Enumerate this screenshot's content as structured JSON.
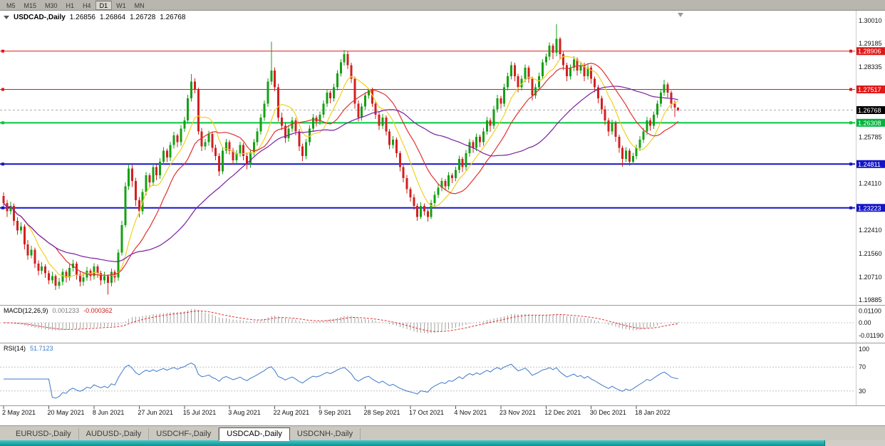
{
  "toolbar": {
    "timeframes": [
      "M5",
      "M15",
      "M30",
      "H1",
      "H4",
      "D1",
      "W1",
      "MN"
    ],
    "active": "D1"
  },
  "chart_header": {
    "symbol": "USDCAD-,Daily",
    "open": "1.26856",
    "high": "1.26864",
    "low": "1.26728",
    "close": "1.26768"
  },
  "price_axis": {
    "ticks": [
      "1.30010",
      "1.29185",
      "1.28335",
      "1.25785",
      "1.24110",
      "1.22410",
      "1.21560",
      "1.20710",
      "1.19885"
    ],
    "badges": [
      {
        "value": "1.28906",
        "color": "#e01818",
        "name": "resistance-upper"
      },
      {
        "value": "1.27517",
        "color": "#e01818",
        "name": "resistance-lower"
      },
      {
        "value": "1.26768",
        "color": "#000000",
        "name": "current-price"
      },
      {
        "value": "1.26308",
        "color": "#00b43c",
        "name": "support-green"
      },
      {
        "value": "1.24811",
        "color": "#1414c8",
        "name": "support-blue-upper"
      },
      {
        "value": "1.23223",
        "color": "#1414c8",
        "name": "support-blue-lower"
      }
    ]
  },
  "hlines": [
    {
      "price": 1.28906,
      "color": "#e01818",
      "width": 1
    },
    {
      "price": 1.27517,
      "color": "#e01818",
      "width": 1
    },
    {
      "price": 1.26308,
      "color": "#00c83c",
      "width": 2
    },
    {
      "price": 1.24811,
      "color": "#1414c8",
      "width": 2
    },
    {
      "price": 1.23223,
      "color": "#1414c8",
      "width": 2
    }
  ],
  "current_price_line": {
    "price": 1.26768,
    "color": "#aaaaaa"
  },
  "indicators": {
    "macd": {
      "label": "MACD(12,26,9)",
      "value": "0.001233",
      "signal_value": "-0.000362",
      "axis": [
        "0.01100",
        "0.00",
        "-0.01190"
      ],
      "params": [
        12,
        26,
        9
      ]
    },
    "rsi": {
      "label": "RSI(14)",
      "value": "51.7123",
      "axis": [
        "100",
        "70",
        "30"
      ],
      "levels": [
        70,
        30
      ],
      "period": 14
    }
  },
  "tabs": {
    "items": [
      "EURUSD-,Daily",
      "AUDUSD-,Daily",
      "USDCHF-,Daily",
      "USDCAD-,Daily",
      "USDCNH-,Daily"
    ],
    "active_index": 3
  },
  "colors": {
    "bull": "#15a015",
    "bear": "#d22020",
    "ma_fast": "#f0d020",
    "ma_mid": "#e03131",
    "ma_slow": "#7a1fa0",
    "macd_hist": "#a2a2a2",
    "macd_signal": "#e03131",
    "rsi": "#3c78c8"
  },
  "chart_data": {
    "type": "candlestick",
    "symbol": "USDCAD",
    "timeframe": "Daily",
    "ylim": [
      1.19885,
      1.3001
    ],
    "x_label_step": 13,
    "x_labels": [
      "2 May 2021",
      "20 May 2021",
      "8 Jun 2021",
      "27 Jun 2021",
      "15 Jul 2021",
      "3 Aug 2021",
      "22 Aug 2021",
      "9 Sep 2021",
      "28 Sep 2021",
      "17 Oct 2021",
      "4 Nov 2021",
      "23 Nov 2021",
      "12 Dec 2021",
      "30 Dec 2021",
      "18 Jan 2022"
    ],
    "ma_periods": {
      "fast": 8,
      "mid": 16,
      "slow": 40
    },
    "candles": [
      [
        1.2365,
        1.2378,
        1.2328,
        1.234
      ],
      [
        1.234,
        1.2352,
        1.229,
        1.231
      ],
      [
        1.231,
        1.2345,
        1.2298,
        1.233
      ],
      [
        1.233,
        1.2338,
        1.2258,
        1.2275
      ],
      [
        1.2275,
        1.2288,
        1.2225,
        1.224
      ],
      [
        1.224,
        1.227,
        1.2228,
        1.2255
      ],
      [
        1.2255,
        1.2262,
        1.2172,
        1.219
      ],
      [
        1.219,
        1.2205,
        1.2135,
        1.215
      ],
      [
        1.215,
        1.2185,
        1.214,
        1.217
      ],
      [
        1.217,
        1.2178,
        1.2105,
        1.212
      ],
      [
        1.212,
        1.2132,
        1.2078,
        1.2095
      ],
      [
        1.2095,
        1.2125,
        1.2082,
        1.211
      ],
      [
        1.211,
        1.2118,
        1.2068,
        1.2085
      ],
      [
        1.2085,
        1.2096,
        1.2045,
        1.206
      ],
      [
        1.206,
        1.209,
        1.2048,
        1.2075
      ],
      [
        1.2075,
        1.2082,
        1.2025,
        1.204
      ],
      [
        1.204,
        1.2068,
        1.2028,
        1.2055
      ],
      [
        1.2055,
        1.2102,
        1.2042,
        1.209
      ],
      [
        1.209,
        1.2098,
        1.2052,
        1.207
      ],
      [
        1.207,
        1.2118,
        1.2058,
        1.2105
      ],
      [
        1.2105,
        1.2135,
        1.2092,
        1.212
      ],
      [
        1.212,
        1.2128,
        1.2062,
        1.208
      ],
      [
        1.208,
        1.209,
        1.2038,
        1.2055
      ],
      [
        1.2055,
        1.2085,
        1.204,
        1.207
      ],
      [
        1.207,
        1.2108,
        1.2058,
        1.2095
      ],
      [
        1.2095,
        1.2102,
        1.2058,
        1.2075
      ],
      [
        1.2075,
        1.2122,
        1.2062,
        1.211
      ],
      [
        1.211,
        1.2118,
        1.2068,
        1.2085
      ],
      [
        1.2085,
        1.2094,
        1.2042,
        1.206
      ],
      [
        1.206,
        1.209,
        1.2046,
        1.2075
      ],
      [
        1.2075,
        1.2082,
        1.2008,
        1.205
      ],
      [
        1.205,
        1.2102,
        1.2038,
        1.209
      ],
      [
        1.209,
        1.2098,
        1.2052,
        1.207
      ],
      [
        1.207,
        1.2172,
        1.2058,
        1.216
      ],
      [
        1.216,
        1.2275,
        1.215,
        1.226
      ],
      [
        1.226,
        1.2415,
        1.2252,
        1.24
      ],
      [
        1.24,
        1.248,
        1.2388,
        1.2465
      ],
      [
        1.2465,
        1.2478,
        1.2398,
        1.242
      ],
      [
        1.242,
        1.2432,
        1.233,
        1.235
      ],
      [
        1.235,
        1.2362,
        1.2288,
        1.231
      ],
      [
        1.231,
        1.2392,
        1.2298,
        1.238
      ],
      [
        1.238,
        1.2452,
        1.2368,
        1.244
      ],
      [
        1.244,
        1.2448,
        1.2395,
        1.2415
      ],
      [
        1.2415,
        1.2482,
        1.2402,
        1.247
      ],
      [
        1.247,
        1.2478,
        1.2422,
        1.244
      ],
      [
        1.244,
        1.2502,
        1.2428,
        1.249
      ],
      [
        1.249,
        1.2542,
        1.2478,
        1.253
      ],
      [
        1.253,
        1.2538,
        1.2488,
        1.2505
      ],
      [
        1.2505,
        1.2562,
        1.2492,
        1.255
      ],
      [
        1.255,
        1.2598,
        1.2538,
        1.2585
      ],
      [
        1.2585,
        1.2592,
        1.2542,
        1.256
      ],
      [
        1.256,
        1.2622,
        1.2548,
        1.261
      ],
      [
        1.261,
        1.2652,
        1.2598,
        1.264
      ],
      [
        1.264,
        1.2732,
        1.2628,
        1.272
      ],
      [
        1.272,
        1.2807,
        1.2708,
        1.278
      ],
      [
        1.278,
        1.2792,
        1.2738,
        1.275
      ],
      [
        1.275,
        1.2758,
        1.2588,
        1.26
      ],
      [
        1.26,
        1.2612,
        1.2528,
        1.2545
      ],
      [
        1.2545,
        1.2572,
        1.2532,
        1.256
      ],
      [
        1.256,
        1.2602,
        1.2548,
        1.259
      ],
      [
        1.259,
        1.2598,
        1.2525,
        1.254
      ],
      [
        1.254,
        1.2552,
        1.2495,
        1.251
      ],
      [
        1.251,
        1.252,
        1.2438,
        1.2455
      ],
      [
        1.2455,
        1.2542,
        1.2445,
        1.253
      ],
      [
        1.253,
        1.2572,
        1.2518,
        1.256
      ],
      [
        1.256,
        1.2568,
        1.2515,
        1.253
      ],
      [
        1.253,
        1.254,
        1.2478,
        1.2495
      ],
      [
        1.2495,
        1.2532,
        1.2482,
        1.252
      ],
      [
        1.252,
        1.2562,
        1.2508,
        1.255
      ],
      [
        1.255,
        1.2558,
        1.2495,
        1.251
      ],
      [
        1.251,
        1.252,
        1.2462,
        1.248
      ],
      [
        1.248,
        1.2535,
        1.2468,
        1.2525
      ],
      [
        1.2525,
        1.2572,
        1.2512,
        1.256
      ],
      [
        1.256,
        1.2612,
        1.2548,
        1.26
      ],
      [
        1.26,
        1.2662,
        1.2588,
        1.265
      ],
      [
        1.265,
        1.2712,
        1.2638,
        1.27
      ],
      [
        1.27,
        1.2792,
        1.2688,
        1.278
      ],
      [
        1.278,
        1.2925,
        1.2768,
        1.282
      ],
      [
        1.282,
        1.2832,
        1.2745,
        1.276
      ],
      [
        1.276,
        1.2772,
        1.2635,
        1.265
      ],
      [
        1.265,
        1.2668,
        1.2605,
        1.262
      ],
      [
        1.262,
        1.2632,
        1.2558,
        1.2575
      ],
      [
        1.2575,
        1.2622,
        1.2562,
        1.261
      ],
      [
        1.261,
        1.2652,
        1.2598,
        1.264
      ],
      [
        1.264,
        1.2648,
        1.2585,
        1.26
      ],
      [
        1.26,
        1.2608,
        1.2528,
        1.2545
      ],
      [
        1.2545,
        1.2555,
        1.2492,
        1.251
      ],
      [
        1.251,
        1.2572,
        1.2498,
        1.256
      ],
      [
        1.256,
        1.2622,
        1.2548,
        1.261
      ],
      [
        1.261,
        1.2662,
        1.2598,
        1.265
      ],
      [
        1.265,
        1.2658,
        1.2618,
        1.2635
      ],
      [
        1.2635,
        1.2672,
        1.2622,
        1.266
      ],
      [
        1.266,
        1.2712,
        1.2648,
        1.27
      ],
      [
        1.27,
        1.2752,
        1.2688,
        1.274
      ],
      [
        1.274,
        1.2748,
        1.2702,
        1.272
      ],
      [
        1.272,
        1.2772,
        1.2708,
        1.276
      ],
      [
        1.276,
        1.2822,
        1.2748,
        1.281
      ],
      [
        1.281,
        1.2862,
        1.2798,
        1.285
      ],
      [
        1.285,
        1.2895,
        1.2838,
        1.288
      ],
      [
        1.288,
        1.289,
        1.2825,
        1.284
      ],
      [
        1.284,
        1.2848,
        1.2775,
        1.279
      ],
      [
        1.279,
        1.2798,
        1.2682,
        1.27
      ],
      [
        1.27,
        1.2712,
        1.2635,
        1.265
      ],
      [
        1.265,
        1.2702,
        1.2638,
        1.269
      ],
      [
        1.269,
        1.2742,
        1.2678,
        1.273
      ],
      [
        1.273,
        1.2755,
        1.2718,
        1.275
      ],
      [
        1.275,
        1.2758,
        1.2688,
        1.27
      ],
      [
        1.27,
        1.2708,
        1.2645,
        1.266
      ],
      [
        1.266,
        1.2672,
        1.2605,
        1.262
      ],
      [
        1.262,
        1.2662,
        1.2608,
        1.265
      ],
      [
        1.265,
        1.2658,
        1.2585,
        1.26
      ],
      [
        1.26,
        1.2608,
        1.2535,
        1.255
      ],
      [
        1.255,
        1.2582,
        1.2538,
        1.257
      ],
      [
        1.257,
        1.2578,
        1.2505,
        1.252
      ],
      [
        1.252,
        1.2528,
        1.2455,
        1.247
      ],
      [
        1.247,
        1.2482,
        1.2415,
        1.243
      ],
      [
        1.243,
        1.2442,
        1.2375,
        1.239
      ],
      [
        1.239,
        1.2398,
        1.2345,
        1.236
      ],
      [
        1.236,
        1.2372,
        1.2315,
        1.233
      ],
      [
        1.233,
        1.2338,
        1.2275,
        1.229
      ],
      [
        1.229,
        1.2342,
        1.2282,
        1.233
      ],
      [
        1.233,
        1.2338,
        1.2295,
        1.231
      ],
      [
        1.231,
        1.2318,
        1.2273,
        1.229
      ],
      [
        1.229,
        1.2352,
        1.2282,
        1.234
      ],
      [
        1.234,
        1.2382,
        1.2328,
        1.237
      ],
      [
        1.237,
        1.2408,
        1.2358,
        1.2395
      ],
      [
        1.2395,
        1.2432,
        1.2382,
        1.242
      ],
      [
        1.242,
        1.2428,
        1.2385,
        1.24
      ],
      [
        1.24,
        1.2452,
        1.2388,
        1.244
      ],
      [
        1.244,
        1.2448,
        1.2412,
        1.243
      ],
      [
        1.243,
        1.2472,
        1.2418,
        1.246
      ],
      [
        1.246,
        1.2512,
        1.2448,
        1.25
      ],
      [
        1.25,
        1.2508,
        1.2452,
        1.247
      ],
      [
        1.247,
        1.2532,
        1.2458,
        1.252
      ],
      [
        1.252,
        1.2572,
        1.2508,
        1.256
      ],
      [
        1.256,
        1.2568,
        1.2522,
        1.254
      ],
      [
        1.254,
        1.2592,
        1.2528,
        1.258
      ],
      [
        1.258,
        1.2588,
        1.2542,
        1.256
      ],
      [
        1.256,
        1.2612,
        1.2548,
        1.26
      ],
      [
        1.26,
        1.2652,
        1.2588,
        1.264
      ],
      [
        1.264,
        1.2648,
        1.2598,
        1.262
      ],
      [
        1.262,
        1.2692,
        1.2608,
        1.268
      ],
      [
        1.268,
        1.2732,
        1.2668,
        1.272
      ],
      [
        1.272,
        1.2728,
        1.2682,
        1.27
      ],
      [
        1.27,
        1.2772,
        1.2688,
        1.276
      ],
      [
        1.276,
        1.2812,
        1.2748,
        1.28
      ],
      [
        1.28,
        1.2852,
        1.2788,
        1.284
      ],
      [
        1.284,
        1.2848,
        1.2782,
        1.28
      ],
      [
        1.28,
        1.2808,
        1.2742,
        1.276
      ],
      [
        1.276,
        1.2802,
        1.2748,
        1.279
      ],
      [
        1.279,
        1.2842,
        1.2778,
        1.283
      ],
      [
        1.283,
        1.2838,
        1.2775,
        1.279
      ],
      [
        1.279,
        1.2798,
        1.2712,
        1.273
      ],
      [
        1.273,
        1.2772,
        1.2718,
        1.276
      ],
      [
        1.276,
        1.2812,
        1.2748,
        1.28
      ],
      [
        1.28,
        1.2862,
        1.2788,
        1.285
      ],
      [
        1.285,
        1.2882,
        1.2838,
        1.287
      ],
      [
        1.287,
        1.2922,
        1.2858,
        1.291
      ],
      [
        1.291,
        1.2918,
        1.2862,
        1.2885
      ],
      [
        1.2885,
        1.2988,
        1.2872,
        1.2935
      ],
      [
        1.2935,
        1.2942,
        1.2862,
        1.288
      ],
      [
        1.288,
        1.2888,
        1.2822,
        1.284
      ],
      [
        1.284,
        1.2848,
        1.2782,
        1.28
      ],
      [
        1.28,
        1.2842,
        1.2788,
        1.283
      ],
      [
        1.283,
        1.2872,
        1.2818,
        1.286
      ],
      [
        1.286,
        1.2868,
        1.2802,
        1.282
      ],
      [
        1.282,
        1.2852,
        1.2808,
        1.284
      ],
      [
        1.284,
        1.2848,
        1.2782,
        1.28
      ],
      [
        1.28,
        1.2842,
        1.2788,
        1.283
      ],
      [
        1.283,
        1.2838,
        1.2772,
        1.279
      ],
      [
        1.279,
        1.2798,
        1.2742,
        1.276
      ],
      [
        1.276,
        1.2768,
        1.2702,
        1.272
      ],
      [
        1.272,
        1.2728,
        1.2662,
        1.268
      ],
      [
        1.268,
        1.2692,
        1.2622,
        1.264
      ],
      [
        1.264,
        1.2648,
        1.2582,
        1.26
      ],
      [
        1.26,
        1.2642,
        1.2588,
        1.263
      ],
      [
        1.263,
        1.2638,
        1.2562,
        1.258
      ],
      [
        1.258,
        1.2588,
        1.2522,
        1.254
      ],
      [
        1.254,
        1.2548,
        1.2472,
        1.25
      ],
      [
        1.25,
        1.2542,
        1.2488,
        1.253
      ],
      [
        1.253,
        1.2538,
        1.2475,
        1.249
      ],
      [
        1.249,
        1.2522,
        1.2478,
        1.251
      ],
      [
        1.251,
        1.2552,
        1.2498,
        1.254
      ],
      [
        1.254,
        1.2582,
        1.2528,
        1.257
      ],
      [
        1.257,
        1.2612,
        1.2558,
        1.26
      ],
      [
        1.26,
        1.2652,
        1.2588,
        1.264
      ],
      [
        1.264,
        1.2648,
        1.2602,
        1.262
      ],
      [
        1.262,
        1.2672,
        1.2608,
        1.266
      ],
      [
        1.266,
        1.2712,
        1.2648,
        1.27
      ],
      [
        1.27,
        1.2752,
        1.2688,
        1.274
      ],
      [
        1.274,
        1.2786,
        1.2728,
        1.277
      ],
      [
        1.277,
        1.2778,
        1.2722,
        1.274
      ],
      [
        1.274,
        1.2748,
        1.2682,
        1.27
      ],
      [
        1.27,
        1.2712,
        1.2652,
        1.2686
      ],
      [
        1.26856,
        1.26864,
        1.26728,
        1.26768
      ]
    ]
  }
}
